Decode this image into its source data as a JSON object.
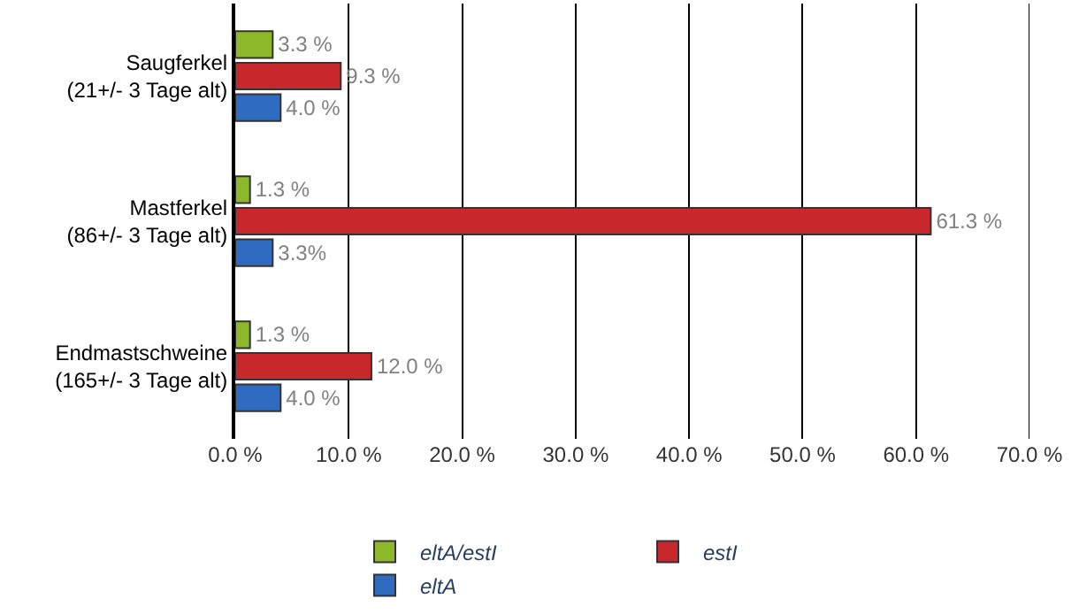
{
  "chart_data": {
    "type": "bar",
    "orientation": "horizontal",
    "categories": [
      "Saugferkel\n(21+/- 3 Tage alt)",
      "Mastferkel\n(86+/- 3 Tage alt)",
      "Endmastschweine\n(165+/- 3 Tage alt)"
    ],
    "series": [
      {
        "name": "eltA/estI",
        "color": "#8cb82a",
        "values": [
          3.3,
          1.3,
          1.3
        ],
        "value_labels": [
          "3.3 %",
          "1.3 %",
          "1.3 %"
        ]
      },
      {
        "name": "estI",
        "color": "#c8282c",
        "values": [
          9.3,
          61.3,
          12.0
        ],
        "value_labels": [
          "9.3 %",
          "61.3 %",
          "12.0 %"
        ]
      },
      {
        "name": "eltA",
        "color": "#2f6cbf",
        "values": [
          4.0,
          3.3,
          4.0
        ],
        "value_labels": [
          "4.0 %",
          "3.3%",
          "4.0 %"
        ]
      }
    ],
    "xlim": [
      0,
      70
    ],
    "xticks": [
      {
        "value": 0,
        "label": "0.0 %"
      },
      {
        "value": 10,
        "label": "10.0 %"
      },
      {
        "value": 20,
        "label": "20.0 %"
      },
      {
        "value": 30,
        "label": "30.0 %"
      },
      {
        "value": 40,
        "label": "40.0 %"
      },
      {
        "value": 50,
        "label": "50.0 %"
      },
      {
        "value": 60,
        "label": "60.0 %"
      },
      {
        "value": 70,
        "label": "70.0 %"
      }
    ],
    "grid": "x",
    "legend": "bottom"
  }
}
